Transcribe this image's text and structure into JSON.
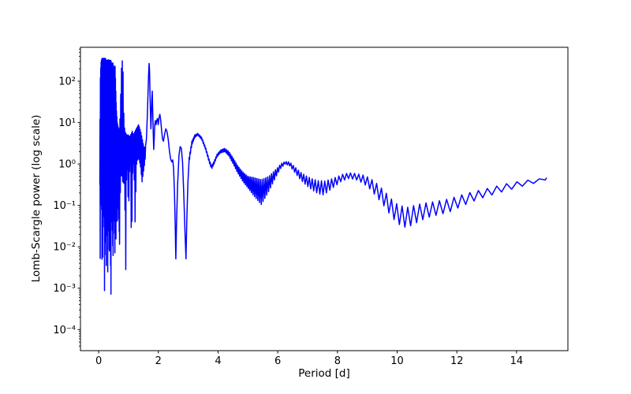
{
  "figure": {
    "background": "#ffffff",
    "frame_color": "#000000"
  },
  "chart_data": {
    "type": "line",
    "title": "",
    "xlabel": "Period [d]",
    "ylabel": "Lomb-Scargle power (log scale)",
    "xscale": "linear",
    "yscale": "log",
    "grid": false,
    "legend": null,
    "xlim": [
      -0.61,
      15.72
    ],
    "ylim": [
      3.1e-05,
      660
    ],
    "x_ticks": [
      {
        "value": 0,
        "label": "0"
      },
      {
        "value": 2,
        "label": "2"
      },
      {
        "value": 4,
        "label": "4"
      },
      {
        "value": 6,
        "label": "6"
      },
      {
        "value": 8,
        "label": "8"
      },
      {
        "value": 10,
        "label": "10"
      },
      {
        "value": 12,
        "label": "12"
      },
      {
        "value": 14,
        "label": "14"
      }
    ],
    "y_ticks": [
      {
        "value": 0.0001,
        "label": "10⁻⁴"
      },
      {
        "value": 0.001,
        "label": "10⁻³"
      },
      {
        "value": 0.01,
        "label": "10⁻²"
      },
      {
        "value": 0.1,
        "label": "10⁻¹"
      },
      {
        "value": 1,
        "label": "10⁰"
      },
      {
        "value": 10,
        "label": "10¹"
      },
      {
        "value": 100,
        "label": "10²"
      }
    ],
    "y_minor_decades": [
      -5,
      2
    ],
    "series": {
      "color": "#0000ff",
      "line_width": 1.5,
      "description": "Lomb-Scargle periodogram vs period; log-power values given as log10(power). Dense segments are [P, log10_lower, log10_upper] envelope anchors of the rapidly oscillating region; curve_points are [P, log10_power]; ripple gives mean curve, ripple half-amplitude (log10) and ripple wavelength [d] anchors.",
      "dense_segments": [
        {
          "x_step": 0.006,
          "anchors": [
            [
              0.04,
              -0.5,
              0.3
            ],
            [
              0.05,
              -2.6,
              1.6
            ],
            [
              0.06,
              -1.0,
              2.2
            ],
            [
              0.08,
              -0.9,
              2.45
            ],
            [
              0.1,
              -1.1,
              2.53
            ],
            [
              0.115,
              -2.6,
              2.55
            ],
            [
              0.125,
              -1.3,
              2.55
            ],
            [
              0.132,
              -3.3,
              2.55
            ],
            [
              0.14,
              -1.2,
              2.55
            ],
            [
              0.15,
              -1.6,
              2.55
            ],
            [
              0.165,
              -1.1,
              2.55
            ],
            [
              0.19,
              -1.3,
              2.55
            ],
            [
              0.2,
              -4.23,
              2.55
            ],
            [
              0.21,
              -1.3,
              2.55
            ],
            [
              0.23,
              -1.1,
              2.55
            ],
            [
              0.253,
              -2.9,
              2.5
            ],
            [
              0.263,
              -1.4,
              2.5
            ],
            [
              0.285,
              -1.2,
              2.5
            ],
            [
              0.308,
              -2.9,
              2.52
            ],
            [
              0.318,
              -1.3,
              2.5
            ],
            [
              0.34,
              -1.4,
              2.52
            ],
            [
              0.358,
              -2.4,
              2.5
            ],
            [
              0.38,
              -1.3,
              2.5
            ],
            [
              0.413,
              -3.2,
              2.5
            ],
            [
              0.423,
              -1.4,
              2.45
            ],
            [
              0.45,
              -1.3,
              2.4
            ],
            [
              0.483,
              -2.3,
              2.45
            ],
            [
              0.493,
              -1.4,
              2.35
            ],
            [
              0.52,
              -1.2,
              2.3
            ],
            [
              0.548,
              -2.3,
              2.4
            ],
            [
              0.565,
              -1.1,
              2.0
            ],
            [
              0.582,
              -1.9,
              1.55
            ],
            [
              0.6,
              -1.0,
              1.25
            ],
            [
              0.623,
              -1.5,
              1.0
            ],
            [
              0.65,
              -0.8,
              0.9
            ],
            [
              0.675,
              -1.3,
              0.85
            ],
            [
              0.7,
              -1.94,
              0.85
            ]
          ]
        },
        {
          "x_step": 0.013,
          "anchors": [
            [
              0.7,
              -1.94,
              0.85
            ],
            [
              0.73,
              -0.5,
              1.4
            ],
            [
              0.755,
              -0.25,
              2.2
            ],
            [
              0.785,
              -0.3,
              2.54
            ],
            [
              0.815,
              -0.5,
              2.3
            ],
            [
              0.845,
              -0.4,
              1.15
            ],
            [
              0.875,
              -0.6,
              0.8
            ],
            [
              0.905,
              -2.8,
              0.75
            ],
            [
              0.935,
              -0.3,
              0.7
            ],
            [
              0.965,
              -0.1,
              0.7
            ],
            [
              1.0,
              -1.25,
              0.7
            ],
            [
              1.035,
              -0.2,
              0.65
            ],
            [
              1.07,
              0.0,
              0.7
            ],
            [
              1.1,
              -2.3,
              0.75
            ],
            [
              1.135,
              -0.3,
              0.8
            ],
            [
              1.165,
              0.05,
              0.7
            ],
            [
              1.195,
              -0.4,
              0.75
            ],
            [
              1.225,
              -1.6,
              0.8
            ],
            [
              1.26,
              -0.05,
              0.85
            ],
            [
              1.3,
              0.1,
              0.9
            ],
            [
              1.335,
              0.15,
              0.95
            ],
            [
              1.37,
              0.05,
              0.88
            ],
            [
              1.41,
              -0.1,
              0.78
            ],
            [
              1.45,
              -0.45,
              0.65
            ],
            [
              1.49,
              -0.25,
              0.5
            ],
            [
              1.53,
              -0.05,
              0.38
            ],
            [
              1.58,
              0.25,
              0.45
            ]
          ]
        }
      ],
      "curve_points": [
        [
          1.6,
          0.6
        ],
        [
          1.63,
          1.15
        ],
        [
          1.655,
          1.75
        ],
        [
          1.675,
          2.2
        ],
        [
          1.69,
          2.43
        ],
        [
          1.705,
          2.25
        ],
        [
          1.72,
          1.7
        ],
        [
          1.735,
          1.25
        ],
        [
          1.75,
          0.85
        ],
        [
          1.765,
          1.15
        ],
        [
          1.78,
          1.55
        ],
        [
          1.795,
          1.76
        ],
        [
          1.81,
          1.3
        ],
        [
          1.83,
          0.7
        ],
        [
          1.845,
          0.35
        ],
        [
          1.86,
          0.6
        ],
        [
          1.88,
          0.95
        ],
        [
          1.9,
          1.05
        ],
        [
          1.92,
          0.95
        ],
        [
          1.945,
          1.05
        ],
        [
          1.97,
          1.1
        ],
        [
          1.995,
          0.95
        ],
        [
          2.02,
          1.1
        ],
        [
          2.05,
          1.2
        ],
        [
          2.08,
          1.05
        ],
        [
          2.11,
          0.8
        ],
        [
          2.14,
          0.6
        ],
        [
          2.17,
          0.55
        ],
        [
          2.21,
          0.72
        ],
        [
          2.25,
          0.85
        ],
        [
          2.29,
          0.78
        ],
        [
          2.33,
          0.6
        ],
        [
          2.37,
          0.32
        ],
        [
          2.41,
          0.12
        ],
        [
          2.45,
          0.05
        ],
        [
          2.48,
          0.1
        ],
        [
          2.51,
          -0.1
        ],
        [
          2.54,
          -0.7
        ],
        [
          2.565,
          -1.5
        ],
        [
          2.585,
          -2.29
        ],
        [
          2.61,
          -1.4
        ],
        [
          2.645,
          -0.5
        ],
        [
          2.69,
          0.2
        ],
        [
          2.73,
          0.42
        ],
        [
          2.77,
          0.38
        ],
        [
          2.81,
          0.05
        ],
        [
          2.85,
          -0.7
        ],
        [
          2.89,
          -1.6
        ],
        [
          2.925,
          -2.29
        ],
        [
          2.955,
          -1.3
        ],
        [
          2.99,
          -0.45
        ],
        [
          3.03,
          0.1
        ]
      ],
      "ripple": {
        "start": 3.03,
        "end": 15,
        "mean": [
          [
            3.03,
            0.1
          ],
          [
            3.12,
            0.5
          ],
          [
            3.22,
            0.67
          ],
          [
            3.32,
            0.72
          ],
          [
            3.45,
            0.62
          ],
          [
            3.58,
            0.38
          ],
          [
            3.7,
            0.08
          ],
          [
            3.78,
            -0.08
          ],
          [
            3.86,
            0.02
          ],
          [
            3.96,
            0.2
          ],
          [
            4.08,
            0.3
          ],
          [
            4.22,
            0.34
          ],
          [
            4.36,
            0.25
          ],
          [
            4.5,
            0.08
          ],
          [
            4.65,
            -0.12
          ],
          [
            4.82,
            -0.3
          ],
          [
            5.0,
            -0.44
          ],
          [
            5.2,
            -0.55
          ],
          [
            5.45,
            -0.68
          ],
          [
            5.7,
            -0.48
          ],
          [
            5.9,
            -0.26
          ],
          [
            6.1,
            -0.05
          ],
          [
            6.25,
            0.03
          ],
          [
            6.4,
            0.0
          ],
          [
            6.55,
            -0.12
          ],
          [
            6.75,
            -0.28
          ],
          [
            6.95,
            -0.4
          ],
          [
            7.15,
            -0.49
          ],
          [
            7.35,
            -0.56
          ],
          [
            7.55,
            -0.58
          ],
          [
            7.75,
            -0.5
          ],
          [
            7.95,
            -0.42
          ],
          [
            8.15,
            -0.33
          ],
          [
            8.4,
            -0.28
          ],
          [
            8.65,
            -0.31
          ],
          [
            8.9,
            -0.38
          ],
          [
            9.1,
            -0.48
          ],
          [
            9.3,
            -0.62
          ],
          [
            9.55,
            -0.82
          ],
          [
            9.8,
            -1.05
          ],
          [
            10.0,
            -1.2
          ],
          [
            10.3,
            -1.3
          ],
          [
            10.55,
            -1.23
          ],
          [
            10.8,
            -1.16
          ],
          [
            11.1,
            -1.1
          ],
          [
            11.45,
            -1.05
          ],
          [
            11.75,
            -1.0
          ],
          [
            12.1,
            -0.9
          ],
          [
            12.4,
            -0.82
          ],
          [
            12.7,
            -0.75
          ],
          [
            13.0,
            -0.69
          ],
          [
            13.3,
            -0.63
          ],
          [
            13.6,
            -0.57
          ],
          [
            13.9,
            -0.52
          ],
          [
            14.2,
            -0.47
          ],
          [
            14.5,
            -0.43
          ],
          [
            14.75,
            -0.4
          ],
          [
            15.0,
            -0.34
          ]
        ],
        "amp": [
          [
            3.03,
            0.06
          ],
          [
            3.3,
            0.02
          ],
          [
            3.6,
            0.03
          ],
          [
            3.78,
            0.04
          ],
          [
            4.0,
            0.03
          ],
          [
            4.25,
            0.04
          ],
          [
            4.5,
            0.07
          ],
          [
            4.75,
            0.1
          ],
          [
            5.0,
            0.14
          ],
          [
            5.2,
            0.22
          ],
          [
            5.45,
            0.3
          ],
          [
            5.7,
            0.18
          ],
          [
            6.0,
            0.07
          ],
          [
            6.25,
            0.03
          ],
          [
            6.5,
            0.06
          ],
          [
            6.75,
            0.09
          ],
          [
            7.1,
            0.13
          ],
          [
            7.5,
            0.17
          ],
          [
            7.8,
            0.12
          ],
          [
            8.1,
            0.08
          ],
          [
            8.4,
            0.065
          ],
          [
            8.7,
            0.08
          ],
          [
            9.0,
            0.12
          ],
          [
            9.3,
            0.16
          ],
          [
            9.7,
            0.2
          ],
          [
            10.1,
            0.24
          ],
          [
            10.4,
            0.24
          ],
          [
            10.8,
            0.2
          ],
          [
            11.2,
            0.17
          ],
          [
            11.75,
            0.16
          ],
          [
            12.3,
            0.13
          ],
          [
            12.8,
            0.1
          ],
          [
            13.3,
            0.09
          ],
          [
            13.8,
            0.08
          ],
          [
            14.3,
            0.06
          ],
          [
            14.7,
            0.04
          ],
          [
            15.0,
            0.035
          ]
        ],
        "wavelength": [
          [
            3.0,
            0.03
          ],
          [
            4.0,
            0.04
          ],
          [
            5.0,
            0.05
          ],
          [
            6.0,
            0.07
          ],
          [
            7.0,
            0.095
          ],
          [
            8.0,
            0.125
          ],
          [
            9.0,
            0.15
          ],
          [
            10.0,
            0.18
          ],
          [
            11.0,
            0.22
          ],
          [
            12.0,
            0.26
          ],
          [
            13.0,
            0.31
          ],
          [
            14.0,
            0.36
          ],
          [
            15.0,
            0.41
          ]
        ]
      }
    }
  }
}
